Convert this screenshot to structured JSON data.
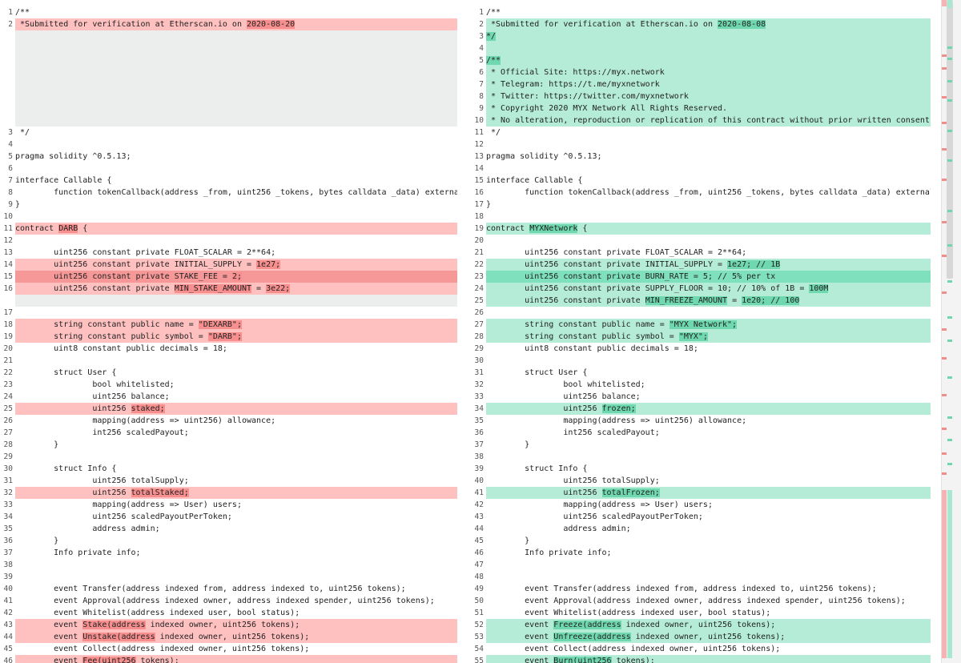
{
  "left": {
    "lines": [
      {
        "n": "1",
        "type": "ctx",
        "segs": [
          {
            "t": "/**"
          }
        ]
      },
      {
        "n": "2",
        "type": "del",
        "segs": [
          {
            "t": " *Submitted for verification at Etherscan.io on "
          },
          {
            "t": "2020-08-20",
            "hl": true
          }
        ]
      },
      {
        "type": "filler",
        "count": 8
      },
      {
        "n": "3",
        "type": "ctx",
        "segs": [
          {
            "t": " */"
          }
        ]
      },
      {
        "n": "4",
        "type": "ctx",
        "segs": [
          {
            "t": ""
          }
        ]
      },
      {
        "n": "5",
        "type": "ctx",
        "segs": [
          {
            "t": "pragma solidity ^0.5.13;"
          }
        ]
      },
      {
        "n": "6",
        "type": "ctx",
        "segs": [
          {
            "t": ""
          }
        ]
      },
      {
        "n": "7",
        "type": "ctx",
        "segs": [
          {
            "t": "interface Callable {"
          }
        ]
      },
      {
        "n": "8",
        "type": "ctx",
        "segs": [
          {
            "t": "        function tokenCallback(address _from, uint256 _tokens, bytes calldata _data) external returns (bool);"
          }
        ]
      },
      {
        "n": "9",
        "type": "ctx",
        "segs": [
          {
            "t": "}"
          }
        ]
      },
      {
        "n": "10",
        "type": "ctx",
        "segs": [
          {
            "t": ""
          }
        ]
      },
      {
        "n": "11",
        "type": "del",
        "segs": [
          {
            "t": "contract "
          },
          {
            "t": "DARB",
            "hl": true
          },
          {
            "t": " {"
          }
        ]
      },
      {
        "n": "12",
        "type": "ctx",
        "segs": [
          {
            "t": ""
          }
        ]
      },
      {
        "n": "13",
        "type": "ctx",
        "segs": [
          {
            "t": "        uint256 constant private FLOAT_SCALAR = 2**64;"
          }
        ]
      },
      {
        "n": "14",
        "type": "del",
        "segs": [
          {
            "t": "        uint256 constant private INITIAL_SUPPLY = "
          },
          {
            "t": "1e27;",
            "hl": true
          }
        ]
      },
      {
        "n": "15",
        "type": "del",
        "strong": true,
        "segs": [
          {
            "t": "        uint256 constant private STAKE_FEE = "
          },
          {
            "t": "2;",
            "hl": true
          }
        ]
      },
      {
        "n": "16",
        "type": "del",
        "segs": [
          {
            "t": "        uint256 constant private "
          },
          {
            "t": "MIN_STAKE_AMOUNT",
            "hl": true
          },
          {
            "t": " = "
          },
          {
            "t": "3e22;",
            "hl": true
          }
        ]
      },
      {
        "type": "filler",
        "count": 1
      },
      {
        "n": "17",
        "type": "ctx",
        "segs": [
          {
            "t": ""
          }
        ]
      },
      {
        "n": "18",
        "type": "del",
        "segs": [
          {
            "t": "        string constant public name = "
          },
          {
            "t": "\"DEXARB\";",
            "hl": true
          }
        ]
      },
      {
        "n": "19",
        "type": "del",
        "segs": [
          {
            "t": "        string constant public symbol = "
          },
          {
            "t": "\"DARB\";",
            "hl": true
          }
        ]
      },
      {
        "n": "20",
        "type": "ctx",
        "segs": [
          {
            "t": "        uint8 constant public decimals = 18;"
          }
        ]
      },
      {
        "n": "21",
        "type": "ctx",
        "segs": [
          {
            "t": ""
          }
        ]
      },
      {
        "n": "22",
        "type": "ctx",
        "segs": [
          {
            "t": "        struct User {"
          }
        ]
      },
      {
        "n": "23",
        "type": "ctx",
        "segs": [
          {
            "t": "                bool whitelisted;"
          }
        ]
      },
      {
        "n": "24",
        "type": "ctx",
        "segs": [
          {
            "t": "                uint256 balance;"
          }
        ]
      },
      {
        "n": "25",
        "type": "del",
        "segs": [
          {
            "t": "                uint256 "
          },
          {
            "t": "staked;",
            "hl": true
          }
        ]
      },
      {
        "n": "26",
        "type": "ctx",
        "segs": [
          {
            "t": "                mapping(address => uint256) allowance;"
          }
        ]
      },
      {
        "n": "27",
        "type": "ctx",
        "segs": [
          {
            "t": "                int256 scaledPayout;"
          }
        ]
      },
      {
        "n": "28",
        "type": "ctx",
        "segs": [
          {
            "t": "        }"
          }
        ]
      },
      {
        "n": "29",
        "type": "ctx",
        "segs": [
          {
            "t": ""
          }
        ]
      },
      {
        "n": "30",
        "type": "ctx",
        "segs": [
          {
            "t": "        struct Info {"
          }
        ]
      },
      {
        "n": "31",
        "type": "ctx",
        "segs": [
          {
            "t": "                uint256 totalSupply;"
          }
        ]
      },
      {
        "n": "32",
        "type": "del",
        "segs": [
          {
            "t": "                uint256 "
          },
          {
            "t": "totalStaked;",
            "hl": true
          }
        ]
      },
      {
        "n": "33",
        "type": "ctx",
        "segs": [
          {
            "t": "                mapping(address => User) users;"
          }
        ]
      },
      {
        "n": "34",
        "type": "ctx",
        "segs": [
          {
            "t": "                uint256 scaledPayoutPerToken;"
          }
        ]
      },
      {
        "n": "35",
        "type": "ctx",
        "segs": [
          {
            "t": "                address admin;"
          }
        ]
      },
      {
        "n": "36",
        "type": "ctx",
        "segs": [
          {
            "t": "        }"
          }
        ]
      },
      {
        "n": "37",
        "type": "ctx",
        "segs": [
          {
            "t": "        Info private info;"
          }
        ]
      },
      {
        "n": "38",
        "type": "ctx",
        "segs": [
          {
            "t": ""
          }
        ]
      },
      {
        "n": "39",
        "type": "ctx",
        "segs": [
          {
            "t": ""
          }
        ]
      },
      {
        "n": "40",
        "type": "ctx",
        "segs": [
          {
            "t": "        event Transfer(address indexed from, address indexed to, uint256 tokens);"
          }
        ]
      },
      {
        "n": "41",
        "type": "ctx",
        "segs": [
          {
            "t": "        event Approval(address indexed owner, address indexed spender, uint256 tokens);"
          }
        ]
      },
      {
        "n": "42",
        "type": "ctx",
        "segs": [
          {
            "t": "        event Whitelist(address indexed user, bool status);"
          }
        ]
      },
      {
        "n": "43",
        "type": "del",
        "segs": [
          {
            "t": "        event "
          },
          {
            "t": "Stake(address",
            "hl": true
          },
          {
            "t": " indexed owner, uint256 tokens);"
          }
        ]
      },
      {
        "n": "44",
        "type": "del",
        "segs": [
          {
            "t": "        event "
          },
          {
            "t": "Unstake(address",
            "hl": true
          },
          {
            "t": " indexed owner, uint256 tokens);"
          }
        ]
      },
      {
        "n": "45",
        "type": "ctx",
        "segs": [
          {
            "t": "        event Collect(address indexed owner, uint256 tokens);"
          }
        ]
      },
      {
        "n": "46",
        "type": "del",
        "segs": [
          {
            "t": "        event "
          },
          {
            "t": "Fee(uint256",
            "hl": true
          },
          {
            "t": " tokens);"
          }
        ]
      }
    ]
  },
  "right": {
    "lines": [
      {
        "n": "1",
        "type": "ctx",
        "segs": [
          {
            "t": "/**"
          }
        ]
      },
      {
        "n": "2",
        "type": "ins",
        "segs": [
          {
            "t": " *Submitted for verification at Etherscan.io on "
          },
          {
            "t": "2020-08-08",
            "hl": true
          }
        ]
      },
      {
        "n": "3",
        "type": "ins",
        "segs": [
          {
            "t": "*/",
            "hl": true
          }
        ]
      },
      {
        "n": "4",
        "type": "ins",
        "segs": [
          {
            "t": ""
          }
        ]
      },
      {
        "n": "5",
        "type": "ins",
        "segs": [
          {
            "t": "/**",
            "hl": true
          }
        ]
      },
      {
        "n": "6",
        "type": "ins",
        "segs": [
          {
            "t": " * Official Site: https://myx.network"
          }
        ]
      },
      {
        "n": "7",
        "type": "ins",
        "segs": [
          {
            "t": " * Telegram: https://t.me/myxnetwork"
          }
        ]
      },
      {
        "n": "8",
        "type": "ins",
        "segs": [
          {
            "t": " * Twitter: https://twitter.com/myxnetwork"
          }
        ]
      },
      {
        "n": "9",
        "type": "ins",
        "segs": [
          {
            "t": " * Copyright 2020 MYX Network All Rights Reserved."
          }
        ]
      },
      {
        "n": "10",
        "type": "ins",
        "segs": [
          {
            "t": " * No alteration, reproduction or replication of this contract without prior written consent from MYX Network"
          }
        ]
      },
      {
        "n": "11",
        "type": "ctx",
        "segs": [
          {
            "t": " */"
          }
        ]
      },
      {
        "n": "12",
        "type": "ctx",
        "segs": [
          {
            "t": ""
          }
        ]
      },
      {
        "n": "13",
        "type": "ctx",
        "segs": [
          {
            "t": "pragma solidity ^0.5.13;"
          }
        ]
      },
      {
        "n": "14",
        "type": "ctx",
        "segs": [
          {
            "t": ""
          }
        ]
      },
      {
        "n": "15",
        "type": "ctx",
        "segs": [
          {
            "t": "interface Callable {"
          }
        ]
      },
      {
        "n": "16",
        "type": "ctx",
        "segs": [
          {
            "t": "        function tokenCallback(address _from, uint256 _tokens, bytes calldata _data) external returns (bool);"
          }
        ]
      },
      {
        "n": "17",
        "type": "ctx",
        "segs": [
          {
            "t": "}"
          }
        ]
      },
      {
        "n": "18",
        "type": "ctx",
        "segs": [
          {
            "t": ""
          }
        ]
      },
      {
        "n": "19",
        "type": "ins",
        "segs": [
          {
            "t": "contract "
          },
          {
            "t": "MYXNetwork",
            "hl": true
          },
          {
            "t": " {"
          }
        ]
      },
      {
        "n": "20",
        "type": "ctx",
        "segs": [
          {
            "t": ""
          }
        ]
      },
      {
        "n": "21",
        "type": "ctx",
        "segs": [
          {
            "t": "        uint256 constant private FLOAT_SCALAR = 2**64;"
          }
        ]
      },
      {
        "n": "22",
        "type": "ins",
        "segs": [
          {
            "t": "        uint256 constant private INITIAL_SUPPLY = "
          },
          {
            "t": "1e27; // 1B",
            "hl": true
          }
        ]
      },
      {
        "n": "23",
        "type": "ins",
        "strong": true,
        "segs": [
          {
            "t": "        uint256 constant private BURN_RATE = 5; // 5% per tx"
          }
        ]
      },
      {
        "n": "24",
        "type": "ins",
        "segs": [
          {
            "t": "        uint256 constant private SUPPLY_FLOOR = 10; // 10% of 1B = "
          },
          {
            "t": "100M",
            "hl": true
          }
        ]
      },
      {
        "n": "25",
        "type": "ins",
        "segs": [
          {
            "t": "        uint256 constant private "
          },
          {
            "t": "MIN_FREEZE_AMOUNT",
            "hl": true
          },
          {
            "t": " = "
          },
          {
            "t": "1e20; // 100",
            "hl": true
          }
        ]
      },
      {
        "n": "26",
        "type": "ctx",
        "segs": [
          {
            "t": ""
          }
        ]
      },
      {
        "n": "27",
        "type": "ins",
        "segs": [
          {
            "t": "        string constant public name = "
          },
          {
            "t": "\"MYX Network\";",
            "hl": true
          }
        ]
      },
      {
        "n": "28",
        "type": "ins",
        "segs": [
          {
            "t": "        string constant public symbol = "
          },
          {
            "t": "\"MYX\";",
            "hl": true
          }
        ]
      },
      {
        "n": "29",
        "type": "ctx",
        "segs": [
          {
            "t": "        uint8 constant public decimals = 18;"
          }
        ]
      },
      {
        "n": "30",
        "type": "ctx",
        "segs": [
          {
            "t": ""
          }
        ]
      },
      {
        "n": "31",
        "type": "ctx",
        "segs": [
          {
            "t": "        struct User {"
          }
        ]
      },
      {
        "n": "32",
        "type": "ctx",
        "segs": [
          {
            "t": "                bool whitelisted;"
          }
        ]
      },
      {
        "n": "33",
        "type": "ctx",
        "segs": [
          {
            "t": "                uint256 balance;"
          }
        ]
      },
      {
        "n": "34",
        "type": "ins",
        "segs": [
          {
            "t": "                uint256 "
          },
          {
            "t": "frozen;",
            "hl": true
          }
        ]
      },
      {
        "n": "35",
        "type": "ctx",
        "segs": [
          {
            "t": "                mapping(address => uint256) allowance;"
          }
        ]
      },
      {
        "n": "36",
        "type": "ctx",
        "segs": [
          {
            "t": "                int256 scaledPayout;"
          }
        ]
      },
      {
        "n": "37",
        "type": "ctx",
        "segs": [
          {
            "t": "        }"
          }
        ]
      },
      {
        "n": "38",
        "type": "ctx",
        "segs": [
          {
            "t": ""
          }
        ]
      },
      {
        "n": "39",
        "type": "ctx",
        "segs": [
          {
            "t": "        struct Info {"
          }
        ]
      },
      {
        "n": "40",
        "type": "ctx",
        "segs": [
          {
            "t": "                uint256 totalSupply;"
          }
        ]
      },
      {
        "n": "41",
        "type": "ins",
        "segs": [
          {
            "t": "                uint256 "
          },
          {
            "t": "totalFrozen;",
            "hl": true
          }
        ]
      },
      {
        "n": "42",
        "type": "ctx",
        "segs": [
          {
            "t": "                mapping(address => User) users;"
          }
        ]
      },
      {
        "n": "43",
        "type": "ctx",
        "segs": [
          {
            "t": "                uint256 scaledPayoutPerToken;"
          }
        ]
      },
      {
        "n": "44",
        "type": "ctx",
        "segs": [
          {
            "t": "                address admin;"
          }
        ]
      },
      {
        "n": "45",
        "type": "ctx",
        "segs": [
          {
            "t": "        }"
          }
        ]
      },
      {
        "n": "46",
        "type": "ctx",
        "segs": [
          {
            "t": "        Info private info;"
          }
        ]
      },
      {
        "n": "47",
        "type": "ctx",
        "segs": [
          {
            "t": ""
          }
        ]
      },
      {
        "n": "48",
        "type": "ctx",
        "segs": [
          {
            "t": ""
          }
        ]
      },
      {
        "n": "49",
        "type": "ctx",
        "segs": [
          {
            "t": "        event Transfer(address indexed from, address indexed to, uint256 tokens);"
          }
        ]
      },
      {
        "n": "50",
        "type": "ctx",
        "segs": [
          {
            "t": "        event Approval(address indexed owner, address indexed spender, uint256 tokens);"
          }
        ]
      },
      {
        "n": "51",
        "type": "ctx",
        "segs": [
          {
            "t": "        event Whitelist(address indexed user, bool status);"
          }
        ]
      },
      {
        "n": "52",
        "type": "ins",
        "segs": [
          {
            "t": "        event "
          },
          {
            "t": "Freeze(address",
            "hl": true
          },
          {
            "t": " indexed owner, uint256 tokens);"
          }
        ]
      },
      {
        "n": "53",
        "type": "ins",
        "segs": [
          {
            "t": "        event "
          },
          {
            "t": "Unfreeze(address",
            "hl": true
          },
          {
            "t": " indexed owner, uint256 tokens);"
          }
        ]
      },
      {
        "n": "54",
        "type": "ctx",
        "segs": [
          {
            "t": "        event Collect(address indexed owner, uint256 tokens);"
          }
        ]
      },
      {
        "n": "55",
        "type": "ins",
        "segs": [
          {
            "t": "        event "
          },
          {
            "t": "Burn(uint256",
            "hl": true
          },
          {
            "t": " tokens);"
          }
        ]
      }
    ]
  },
  "colors": {
    "deleted_line": "#ffc0c0",
    "deleted_highlight": "#f78f8f",
    "inserted_line": "#b5ecd8",
    "inserted_highlight": "#6fd8b0",
    "filler": "#ebeeed"
  }
}
